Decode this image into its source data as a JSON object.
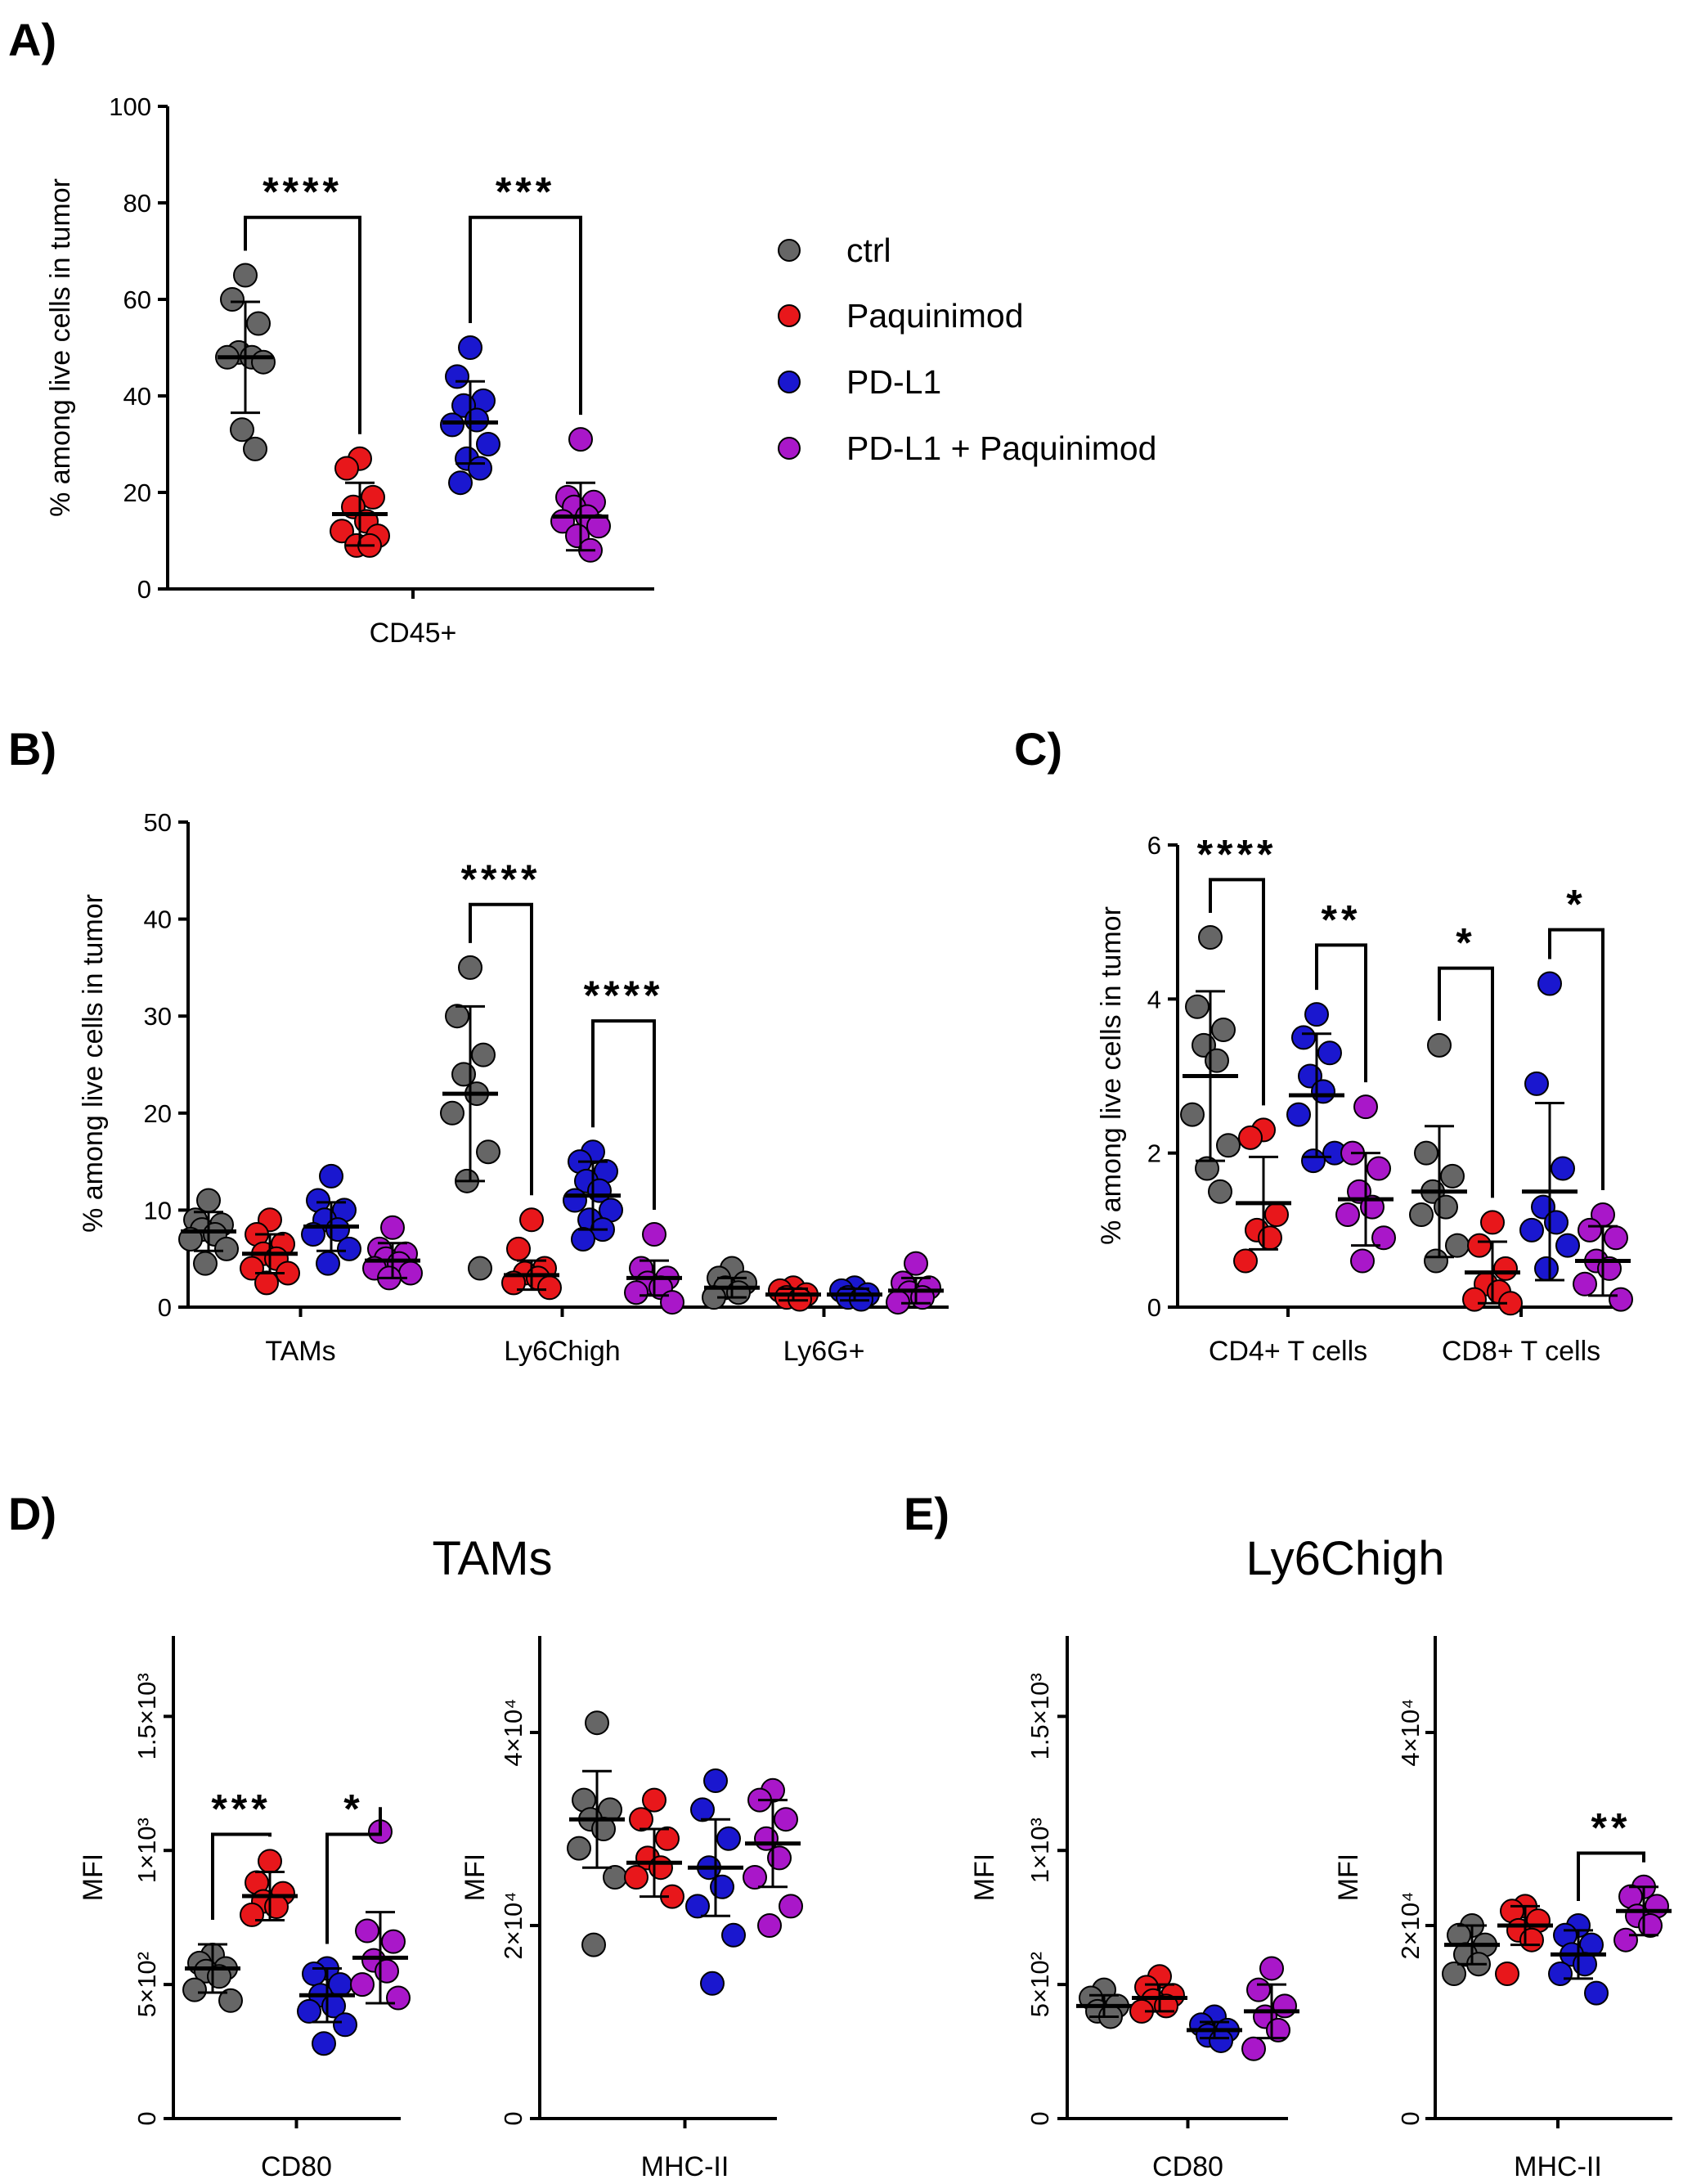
{
  "colors": {
    "ctrl": "#666666",
    "Paquinimod": "#e8171b",
    "PD-L1": "#1a17cf",
    "PD-L1 + Paquinimod": "#a917c9"
  },
  "legend": [
    "ctrl",
    "Paquinimod",
    "PD-L1",
    "PD-L1 + Paquinimod"
  ],
  "chart_data": [
    {
      "panel": "A)",
      "type": "scatter",
      "ylabel": "% among live cells in tumor",
      "ylim": [
        0,
        100
      ],
      "yticks": [
        0,
        20,
        40,
        60,
        80,
        100
      ],
      "ytick_labels": [
        "0",
        "20",
        "40",
        "60",
        "80",
        "100"
      ],
      "categories": [
        "CD45+"
      ],
      "series": [
        {
          "name": "ctrl",
          "mean": [
            48
          ],
          "sd": [
            11.5
          ],
          "values": [
            [
              65,
              60,
              55,
              49,
              48,
              48,
              47,
              33,
              29
            ]
          ]
        },
        {
          "name": "Paquinimod",
          "mean": [
            15.5
          ],
          "sd": [
            6.5
          ],
          "values": [
            [
              27,
              25,
              19,
              17,
              14,
              12,
              11,
              9,
              9
            ]
          ]
        },
        {
          "name": "PD-L1",
          "mean": [
            34.5
          ],
          "sd": [
            8.5
          ],
          "values": [
            [
              50,
              44,
              39,
              38,
              35,
              34,
              30,
              27,
              25,
              22
            ]
          ]
        },
        {
          "name": "PD-L1 + Paquinimod",
          "mean": [
            15
          ],
          "sd": [
            7
          ],
          "values": [
            [
              31,
              19,
              18,
              17,
              15,
              14,
              13,
              11,
              8
            ]
          ]
        }
      ],
      "brackets": [
        {
          "from": "ctrl",
          "to": "Paquinimod",
          "cat": 0,
          "y": 77,
          "stars": "****"
        },
        {
          "from": "PD-L1",
          "to": "PD-L1 + Paquinimod",
          "cat": 0,
          "y": 77,
          "stars": "***"
        }
      ]
    },
    {
      "panel": "B)",
      "type": "scatter",
      "ylabel": "% among live cells in tumor",
      "ylim": [
        0,
        50
      ],
      "yticks": [
        0,
        10,
        20,
        30,
        40,
        50
      ],
      "ytick_labels": [
        "0",
        "10",
        "20",
        "30",
        "40",
        "50"
      ],
      "categories": [
        "TAMs",
        "Ly6Chigh",
        "Ly6G+"
      ],
      "series": [
        {
          "name": "ctrl",
          "mean": [
            7.8,
            22,
            2
          ],
          "sd": [
            2,
            9,
            1
          ],
          "values": [
            [
              11,
              9,
              8.5,
              8,
              7.5,
              7,
              6,
              4.5
            ],
            [
              35,
              30,
              26,
              24,
              22,
              20,
              16,
              13,
              4
            ],
            [
              4,
              3,
              2.5,
              2,
              1.5,
              1
            ]
          ]
        },
        {
          "name": "Paquinimod",
          "mean": [
            5.5,
            3.3,
            1.3
          ],
          "sd": [
            2,
            1.5,
            0.6
          ],
          "values": [
            [
              9,
              7.5,
              6.5,
              5.5,
              5,
              4,
              3.5,
              2.5
            ],
            [
              9,
              6,
              4,
              3.5,
              3,
              2.5,
              2
            ],
            [
              2,
              1.7,
              1.3,
              1,
              0.8
            ]
          ]
        },
        {
          "name": "PD-L1",
          "mean": [
            8.3,
            11.5,
            1.3
          ],
          "sd": [
            2.5,
            3.5,
            0.6
          ],
          "values": [
            [
              13.5,
              11,
              10,
              9,
              8,
              7.5,
              6,
              4.5
            ],
            [
              16,
              15,
              14,
              13,
              12,
              11,
              10,
              9,
              8,
              7
            ],
            [
              2,
              1.7,
              1.3,
              1,
              0.8
            ]
          ]
        },
        {
          "name": "PD-L1 + Paquinimod",
          "mean": [
            4.8,
            3,
            1.7
          ],
          "sd": [
            1.8,
            1.8,
            1.3
          ],
          "values": [
            [
              8.2,
              6,
              5.5,
              5,
              4.5,
              4,
              3.5,
              3
            ],
            [
              7.5,
              4,
              3,
              2.5,
              2,
              1.5,
              0.5
            ],
            [
              4.5,
              2.5,
              2,
              1.5,
              1,
              0.5
            ]
          ]
        }
      ],
      "brackets": [
        {
          "from": "ctrl",
          "to": "Paquinimod",
          "cat": 1,
          "y": 41.5,
          "stars": "****"
        },
        {
          "from": "PD-L1",
          "to": "PD-L1 + Paquinimod",
          "cat": 1,
          "y": 29.5,
          "stars": "****"
        }
      ]
    },
    {
      "panel": "C)",
      "type": "scatter",
      "ylabel": "% among live cells in tumor",
      "ylim": [
        0,
        6
      ],
      "yticks": [
        0,
        2,
        4,
        6
      ],
      "ytick_labels": [
        "0",
        "2",
        "4",
        "6"
      ],
      "categories": [
        "CD4+ T cells",
        "CD8+ T cells"
      ],
      "series": [
        {
          "name": "ctrl",
          "mean": [
            3,
            1.5
          ],
          "sd": [
            1.1,
            0.85
          ],
          "values": [
            [
              4.8,
              3.9,
              3.6,
              3.4,
              3.2,
              2.5,
              2.1,
              1.8,
              1.5
            ],
            [
              3.4,
              2,
              1.7,
              1.5,
              1.3,
              1.2,
              0.8,
              0.6
            ]
          ]
        },
        {
          "name": "Paquinimod",
          "mean": [
            1.35,
            0.45
          ],
          "sd": [
            0.6,
            0.4
          ],
          "values": [
            [
              2.3,
              2.2,
              1.2,
              1,
              0.9,
              0.6
            ],
            [
              1.1,
              0.8,
              0.5,
              0.3,
              0.2,
              0.1,
              0.05
            ]
          ]
        },
        {
          "name": "PD-L1",
          "mean": [
            2.75,
            1.5
          ],
          "sd": [
            0.8,
            1.15
          ],
          "values": [
            [
              3.8,
              3.5,
              3.3,
              3,
              2.8,
              2.5,
              2,
              1.9
            ],
            [
              4.2,
              2.9,
              1.8,
              1.3,
              1.1,
              1,
              0.8,
              0.5
            ]
          ]
        },
        {
          "name": "PD-L1 + Paquinimod",
          "mean": [
            1.4,
            0.6
          ],
          "sd": [
            0.6,
            0.45
          ],
          "values": [
            [
              2.6,
              2,
              1.8,
              1.5,
              1.3,
              1.2,
              0.9,
              0.6
            ],
            [
              1.2,
              1,
              0.9,
              0.6,
              0.5,
              0.3,
              0.1
            ]
          ]
        }
      ],
      "brackets": [
        {
          "from": "ctrl",
          "to": "Paquinimod",
          "cat": 0,
          "y": 5.55,
          "stars": "****"
        },
        {
          "from": "PD-L1",
          "to": "PD-L1 + Paquinimod",
          "cat": 0,
          "y": 4.7,
          "stars": "**"
        },
        {
          "from": "ctrl",
          "to": "Paquinimod",
          "cat": 1,
          "y": 4.4,
          "stars": "*"
        },
        {
          "from": "PD-L1",
          "to": "PD-L1 + Paquinimod",
          "cat": 1,
          "y": 4.9,
          "stars": "*"
        }
      ]
    },
    {
      "panel": "D)",
      "title": "TAMs",
      "type": "scatter",
      "ylabel": "MFI",
      "ylim": [
        0,
        1800
      ],
      "yticks": [
        0,
        500,
        1000,
        1500
      ],
      "ytick_labels": [
        "0",
        "5×10²",
        "1×10³",
        "1.5×10³"
      ],
      "categories": [
        "CD80"
      ],
      "series": [
        {
          "name": "ctrl",
          "mean": [
            560
          ],
          "sd": [
            90
          ],
          "values": [
            [
              610,
              580,
              560,
              550,
              530,
              480,
              440
            ]
          ]
        },
        {
          "name": "Paquinimod",
          "mean": [
            830
          ],
          "sd": [
            90
          ],
          "values": [
            [
              960,
              880,
              840,
              810,
              790,
              760
            ]
          ]
        },
        {
          "name": "PD-L1",
          "mean": [
            460
          ],
          "sd": [
            100
          ],
          "values": [
            [
              560,
              540,
              500,
              460,
              420,
              400,
              350,
              280
            ]
          ]
        },
        {
          "name": "PD-L1 + Paquinimod",
          "mean": [
            600
          ],
          "sd": [
            170
          ],
          "values": [
            [
              1070,
              700,
              660,
              590,
              550,
              500,
              450
            ]
          ]
        }
      ],
      "brackets": [
        {
          "from": "ctrl",
          "to": "Paquinimod",
          "cat": 0,
          "y": 1060,
          "stars": "***"
        },
        {
          "from": "PD-L1",
          "to": "PD-L1 + Paquinimod",
          "cat": 0,
          "y": 1060,
          "stars": "*"
        }
      ]
    },
    {
      "panel": "D)",
      "type": "scatter",
      "ylabel": "MFI",
      "ylim": [
        0,
        50000
      ],
      "yticks": [
        0,
        20000,
        40000
      ],
      "ytick_labels": [
        "0",
        "2×10⁴",
        "4×10⁴"
      ],
      "categories": [
        "MHC-II"
      ],
      "series": [
        {
          "name": "ctrl",
          "mean": [
            31000
          ],
          "sd": [
            5000
          ],
          "values": [
            [
              41000,
              33000,
              32000,
              31000,
              30000,
              28000,
              25000,
              18000
            ]
          ]
        },
        {
          "name": "Paquinimod",
          "mean": [
            26500
          ],
          "sd": [
            3500
          ],
          "values": [
            [
              33000,
              31000,
              29000,
              27000,
              26000,
              25000,
              23000
            ]
          ]
        },
        {
          "name": "PD-L1",
          "mean": [
            26000
          ],
          "sd": [
            5000
          ],
          "values": [
            [
              35000,
              32000,
              29000,
              26000,
              24000,
              22000,
              19000,
              14000
            ]
          ]
        },
        {
          "name": "PD-L1 + Paquinimod",
          "mean": [
            28500
          ],
          "sd": [
            4500
          ],
          "values": [
            [
              34000,
              33000,
              31000,
              29000,
              27000,
              25000,
              22000,
              20000
            ]
          ]
        }
      ],
      "brackets": []
    },
    {
      "panel": "E)",
      "title": "Ly6Chigh",
      "type": "scatter",
      "ylabel": "MFI",
      "ylim": [
        0,
        1800
      ],
      "yticks": [
        0,
        500,
        1000,
        1500
      ],
      "ytick_labels": [
        "0",
        "5×10²",
        "1×10³",
        "1.5×10³"
      ],
      "categories": [
        "CD80"
      ],
      "series": [
        {
          "name": "ctrl",
          "mean": [
            420
          ],
          "sd": [
            40
          ],
          "values": [
            [
              480,
              450,
              420,
              400,
              380
            ]
          ]
        },
        {
          "name": "Paquinimod",
          "mean": [
            450
          ],
          "sd": [
            50
          ],
          "values": [
            [
              530,
              490,
              460,
              440,
              420,
              400
            ]
          ]
        },
        {
          "name": "PD-L1",
          "mean": [
            330
          ],
          "sd": [
            30
          ],
          "values": [
            [
              380,
              350,
              330,
              310,
              290
            ]
          ]
        },
        {
          "name": "PD-L1 + Paquinimod",
          "mean": [
            400
          ],
          "sd": [
            100
          ],
          "values": [
            [
              560,
              480,
              420,
              380,
              330,
              260
            ]
          ]
        }
      ],
      "brackets": []
    },
    {
      "panel": "E)",
      "type": "scatter",
      "ylabel": "MFI",
      "ylim": [
        0,
        50000
      ],
      "yticks": [
        0,
        20000,
        40000
      ],
      "ytick_labels": [
        "0",
        "2×10⁴",
        "4×10⁴"
      ],
      "categories": [
        "MHC-II"
      ],
      "series": [
        {
          "name": "ctrl",
          "mean": [
            18000
          ],
          "sd": [
            2000
          ],
          "values": [
            [
              20000,
              19000,
              18000,
              17000,
              16000,
              15000
            ]
          ]
        },
        {
          "name": "Paquinimod",
          "mean": [
            20000
          ],
          "sd": [
            2000
          ],
          "values": [
            [
              22000,
              21500,
              20500,
              19500,
              18500,
              15000
            ]
          ]
        },
        {
          "name": "PD-L1",
          "mean": [
            17000
          ],
          "sd": [
            2500
          ],
          "values": [
            [
              20000,
              19000,
              18000,
              17000,
              16000,
              15000,
              13000
            ]
          ]
        },
        {
          "name": "PD-L1 + Paquinimod",
          "mean": [
            21500
          ],
          "sd": [
            2500
          ],
          "values": [
            [
              24000,
              23000,
              22000,
              21000,
              20000,
              18500
            ]
          ]
        }
      ],
      "brackets": [
        {
          "from": "PD-L1",
          "to": "PD-L1 + Paquinimod",
          "cat": 0,
          "y": 27500,
          "stars": "**"
        }
      ]
    }
  ]
}
